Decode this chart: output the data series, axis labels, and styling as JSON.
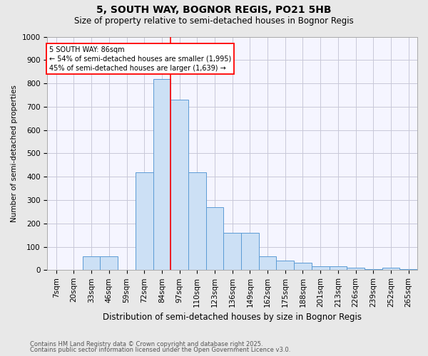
{
  "title1": "5, SOUTH WAY, BOGNOR REGIS, PO21 5HB",
  "title2": "Size of property relative to semi-detached houses in Bognor Regis",
  "xlabel": "Distribution of semi-detached houses by size in Bognor Regis",
  "ylabel": "Number of semi-detached properties",
  "categories": [
    "7sqm",
    "20sqm",
    "33sqm",
    "46sqm",
    "59sqm",
    "72sqm",
    "84sqm",
    "97sqm",
    "110sqm",
    "123sqm",
    "136sqm",
    "149sqm",
    "162sqm",
    "175sqm",
    "188sqm",
    "201sqm",
    "213sqm",
    "226sqm",
    "239sqm",
    "252sqm",
    "265sqm"
  ],
  "values": [
    2,
    2,
    60,
    60,
    2,
    420,
    820,
    730,
    420,
    270,
    160,
    160,
    60,
    40,
    30,
    17,
    17,
    10,
    5,
    10,
    5
  ],
  "bar_color": "#cce0f5",
  "bar_edge_color": "#5b9bd5",
  "red_line_x": 6.5,
  "annotation_line1": "5 SOUTH WAY: 86sqm",
  "annotation_line2": "← 54% of semi-detached houses are smaller (1,995)",
  "annotation_line3": "45% of semi-detached houses are larger (1,639) →",
  "ylim_max": 1000,
  "yticks": [
    0,
    100,
    200,
    300,
    400,
    500,
    600,
    700,
    800,
    900,
    1000
  ],
  "footer1": "Contains HM Land Registry data © Crown copyright and database right 2025.",
  "footer2": "Contains public sector information licensed under the Open Government Licence v3.0.",
  "bg_color": "#e8e8e8",
  "plot_bg": "#f5f5ff",
  "grid_color": "#c8c8d8",
  "title1_fontsize": 10,
  "title2_fontsize": 8.5,
  "xlabel_fontsize": 8.5,
  "ylabel_fontsize": 7.5,
  "tick_fontsize": 7.5,
  "annot_fontsize": 7.0,
  "footer_fontsize": 6.0
}
